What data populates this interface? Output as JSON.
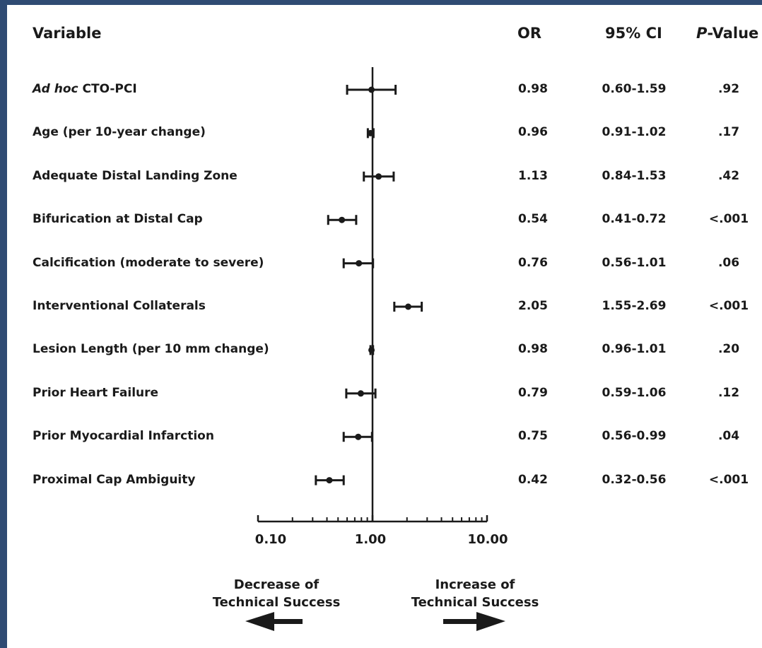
{
  "header": {
    "variable": "Variable",
    "or": "OR",
    "ci": "95% CI",
    "p_italic": "P",
    "p_rest": "-Value"
  },
  "chart_data": {
    "type": "forest",
    "xscale": "log",
    "xlim": [
      0.1,
      10
    ],
    "reference_line": 1.0,
    "tick_labels": [
      "0.10",
      "1.00",
      "10.00"
    ],
    "rows": [
      {
        "label_italic": "Ad hoc",
        "label": " CTO-PCI",
        "or": 0.98,
        "lo": 0.6,
        "hi": 1.59,
        "or_text": "0.98",
        "ci_text": "0.60-1.59",
        "p_text": ".92"
      },
      {
        "label_italic": "",
        "label": "Age (per 10-year change)",
        "or": 0.96,
        "lo": 0.91,
        "hi": 1.02,
        "or_text": "0.96",
        "ci_text": "0.91-1.02",
        "p_text": ".17"
      },
      {
        "label_italic": "",
        "label": "Adequate Distal Landing Zone",
        "or": 1.13,
        "lo": 0.84,
        "hi": 1.53,
        "or_text": "1.13",
        "ci_text": "0.84-1.53",
        "p_text": ".42"
      },
      {
        "label_italic": "",
        "label": "Bifurication at Distal Cap",
        "or": 0.54,
        "lo": 0.41,
        "hi": 0.72,
        "or_text": "0.54",
        "ci_text": "0.41-0.72",
        "p_text": "<.001"
      },
      {
        "label_italic": "",
        "label": "Calcification (moderate to severe)",
        "or": 0.76,
        "lo": 0.56,
        "hi": 1.01,
        "or_text": "0.76",
        "ci_text": "0.56-1.01",
        "p_text": ".06"
      },
      {
        "label_italic": "",
        "label": "Interventional Collaterals",
        "or": 2.05,
        "lo": 1.55,
        "hi": 2.69,
        "or_text": "2.05",
        "ci_text": "1.55-2.69",
        "p_text": "<.001"
      },
      {
        "label_italic": "",
        "label": "Lesion Length (per 10 mm change)",
        "or": 0.98,
        "lo": 0.96,
        "hi": 1.01,
        "or_text": "0.98",
        "ci_text": "0.96-1.01",
        "p_text": ".20"
      },
      {
        "label_italic": "",
        "label": "Prior Heart Failure",
        "or": 0.79,
        "lo": 0.59,
        "hi": 1.06,
        "or_text": "0.79",
        "ci_text": "0.59-1.06",
        "p_text": ".12"
      },
      {
        "label_italic": "",
        "label": "Prior Myocardial Infarction",
        "or": 0.75,
        "lo": 0.56,
        "hi": 0.99,
        "or_text": "0.75",
        "ci_text": "0.56-0.99",
        "p_text": ".04"
      },
      {
        "label_italic": "",
        "label": "Proximal Cap Ambiguity",
        "or": 0.42,
        "lo": 0.32,
        "hi": 0.56,
        "or_text": "0.42",
        "ci_text": "0.32-0.56",
        "p_text": "<.001"
      }
    ]
  },
  "captions": {
    "left_line1": "Decrease of",
    "left_line2": "Technical Success",
    "right_line1": "Increase of",
    "right_line2": "Technical Success"
  },
  "colors": {
    "frame": "#2f4b73",
    "ink": "#1a1a1a"
  }
}
